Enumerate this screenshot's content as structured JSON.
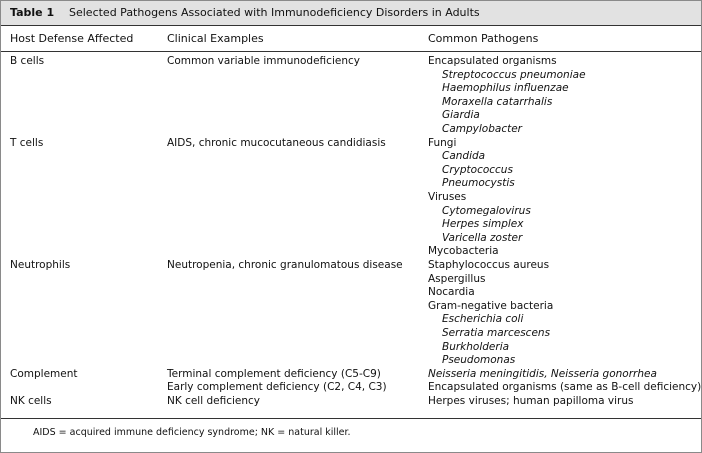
{
  "table": {
    "label": "Table 1",
    "title": "Selected Pathogens Associated with Immunodeficiency Disorders in Adults",
    "headers": [
      "Host Defense Affected",
      "Clinical Examples",
      "Common Pathogens"
    ],
    "rows": [
      {
        "host": "B cells",
        "clinical": [
          "Common variable immunodeficiency"
        ],
        "pathogens": [
          {
            "text": "Encapsulated organisms"
          },
          {
            "text": "Streptococcus pneumoniae",
            "italic": true,
            "indent": true
          },
          {
            "text": "Haemophilus influenzae",
            "italic": true,
            "indent": true
          },
          {
            "text": "Moraxella catarrhalis",
            "italic": true,
            "indent": true
          },
          {
            "text": "Giardia",
            "italic": true,
            "indent": true
          },
          {
            "text": "Campylobacter",
            "italic": true,
            "indent": true
          }
        ]
      },
      {
        "host": "T cells",
        "clinical": [
          "AIDS, chronic mucocutaneous candidiasis"
        ],
        "pathogens": [
          {
            "text": "Fungi"
          },
          {
            "text": "Candida",
            "italic": true,
            "indent": true
          },
          {
            "text": "Cryptococcus",
            "italic": true,
            "indent": true
          },
          {
            "text": "Pneumocystis",
            "italic": true,
            "indent": true
          },
          {
            "text": "Viruses"
          },
          {
            "text": "Cytomegalovirus",
            "italic": true,
            "indent": true
          },
          {
            "text": "Herpes simplex",
            "italic": true,
            "indent": true
          },
          {
            "text": "Varicella zoster",
            "italic": true,
            "indent": true
          },
          {
            "text": "Mycobacteria"
          }
        ]
      },
      {
        "host": "Neutrophils",
        "clinical": [
          "Neutropenia, chronic granulomatous disease"
        ],
        "pathogens": [
          {
            "text": "Staphylococcus aureus"
          },
          {
            "text": "Aspergillus"
          },
          {
            "text": "Nocardia"
          },
          {
            "text": "Gram-negative bacteria"
          },
          {
            "text": "Escherichia coli",
            "italic": true,
            "indent": true
          },
          {
            "text": "Serratia marcescens",
            "italic": true,
            "indent": true
          },
          {
            "text": "Burkholderia",
            "italic": true,
            "indent": true
          },
          {
            "text": "Pseudomonas",
            "italic": true,
            "indent": true
          }
        ]
      },
      {
        "host": "Complement",
        "clinical": [
          "Terminal complement deficiency (C5-C9)",
          "Early complement deficiency (C2, C4, C3)"
        ],
        "pathogens": [
          {
            "text": "Neisseria meningitidis, Neisseria gonorrhea",
            "italic": true
          },
          {
            "text": "Encapsulated organisms (same as B-cell deficiency)"
          }
        ]
      },
      {
        "host": "NK cells",
        "clinical": [
          "NK cell deficiency"
        ],
        "pathogens": [
          {
            "text": "Herpes viruses; human papilloma virus"
          }
        ]
      }
    ],
    "footnote": "AIDS = acquired immune deficiency syndrome; NK = natural killer."
  }
}
